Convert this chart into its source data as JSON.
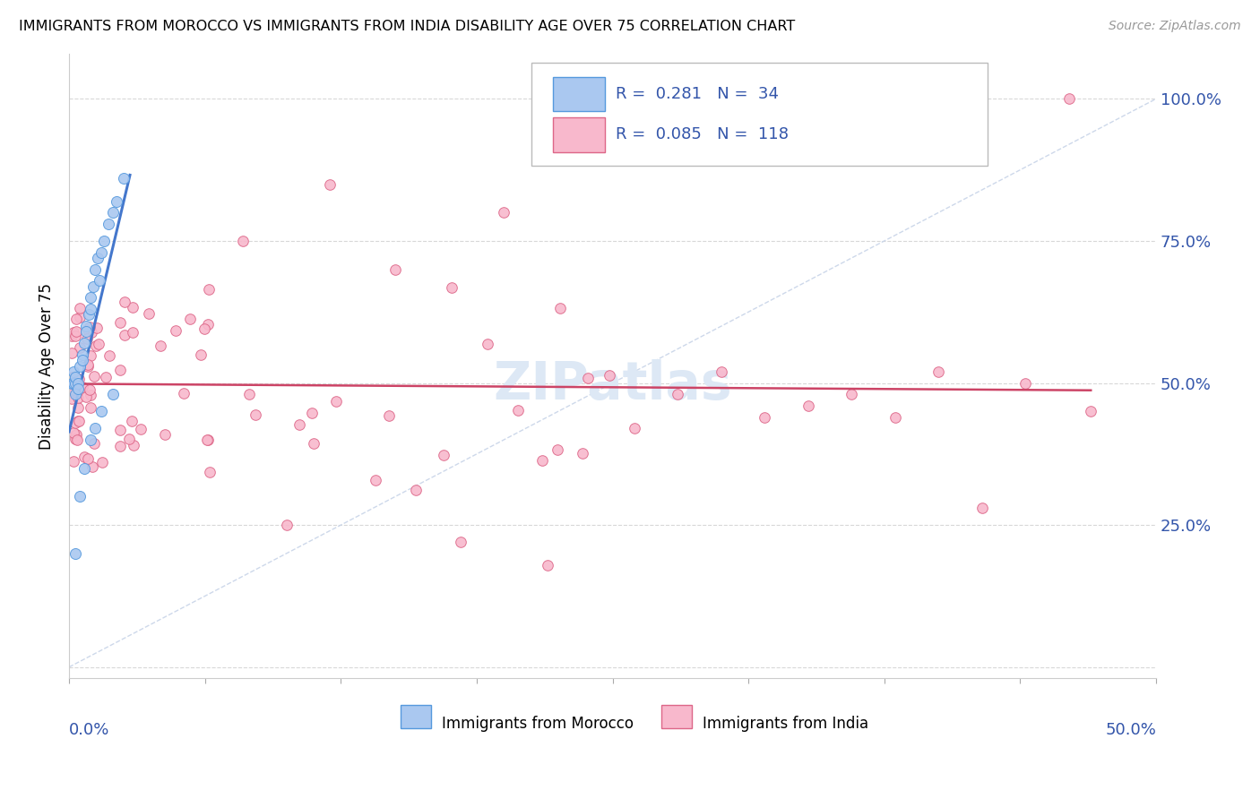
{
  "title": "IMMIGRANTS FROM MOROCCO VS IMMIGRANTS FROM INDIA DISABILITY AGE OVER 75 CORRELATION CHART",
  "source": "Source: ZipAtlas.com",
  "ylabel": "Disability Age Over 75",
  "xlim": [
    0,
    0.5
  ],
  "ylim": [
    -0.02,
    1.08
  ],
  "ytick_vals": [
    0.0,
    0.25,
    0.5,
    0.75,
    1.0
  ],
  "ytick_labels_right": [
    "",
    "25.0%",
    "50.0%",
    "75.0%",
    "100.0%"
  ],
  "color_morocco_fill": "#aac8f0",
  "color_morocco_edge": "#5599dd",
  "color_morocco_line": "#4477cc",
  "color_india_fill": "#f8b8cc",
  "color_india_edge": "#dd6688",
  "color_india_line": "#cc4466",
  "color_diagonal": "#c8d4e8",
  "color_blue_text": "#3355aa",
  "watermark_color": "#dde8f5",
  "legend_R_morocco": "R =  0.281",
  "legend_N_morocco": "N =  34",
  "legend_R_india": "R =  0.085",
  "legend_N_india": "N =  118"
}
